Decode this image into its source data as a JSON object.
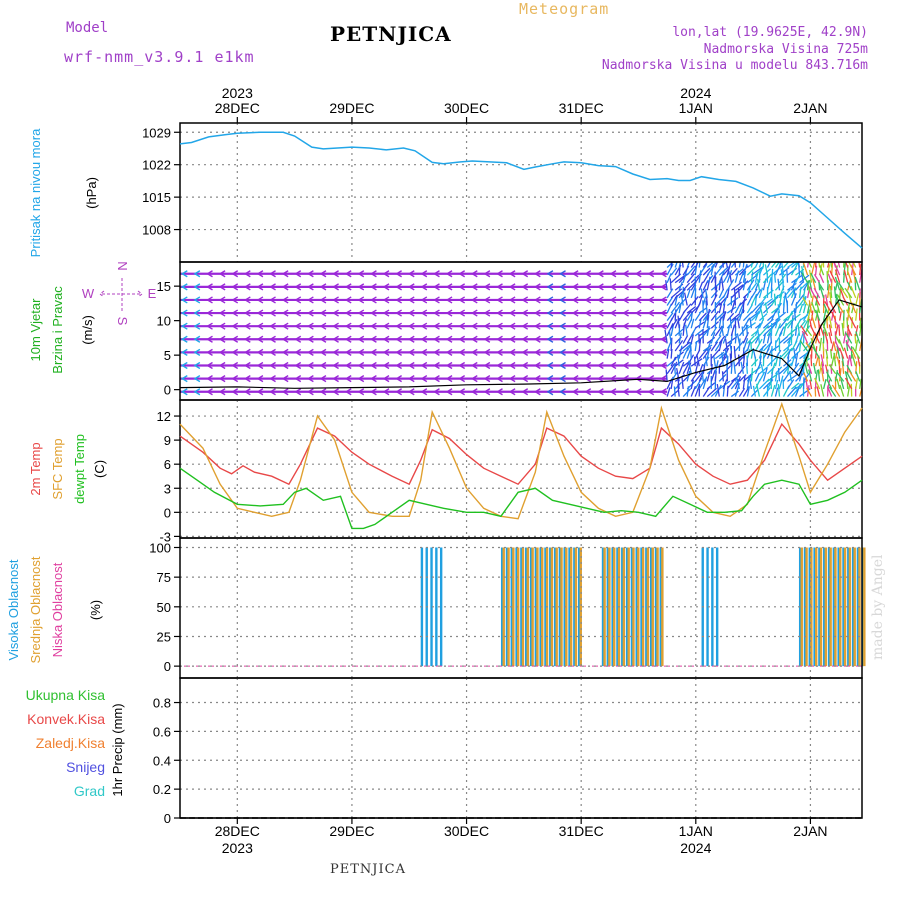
{
  "header": {
    "title": "PETNJICA",
    "model_label": "Model",
    "model_name": "wrf-nmm_v3.9.1 e1km",
    "meteogram_label": "Meteogram",
    "location_lines": [
      "lon,lat (19.9625E, 42.9N)",
      "Nadmorska Visina 725m",
      "Nadmorska Visina u modelu 843.716m"
    ],
    "footer": "PETNJICA",
    "watermark": "made by Angel"
  },
  "axis_dates": {
    "top_years": [
      {
        "x": 0,
        "label": "2023"
      },
      {
        "x": 4,
        "label": "2024"
      }
    ],
    "bottom_years": [
      {
        "x": 0,
        "label": "2023"
      },
      {
        "x": 4,
        "label": "2024"
      }
    ],
    "days": [
      "28DEC",
      "29DEC",
      "30DEC",
      "31DEC",
      "1JAN",
      "2JAN"
    ],
    "xlim": [
      -0.5,
      5.45
    ]
  },
  "panels": {
    "pressure": {
      "label": "Pritisak na nivou mora",
      "unit": "(hPa)",
      "ylim": [
        1001,
        1031
      ],
      "ticks": [
        1008,
        1015,
        1022,
        1029
      ]
    },
    "wind": {
      "label1": "10m Vjetar",
      "label2": "Brzina i Pravac",
      "unit": "(m/s)",
      "compass": {
        "n": "N",
        "s": "S",
        "e": "E",
        "w": "W"
      },
      "ylim": [
        -1.5,
        18.5
      ],
      "ticks": [
        0,
        5,
        10,
        15
      ]
    },
    "temperature": {
      "label1": "2m Temp",
      "label2": "SFC Temp",
      "label3": "dewpt Temp",
      "unit": "(C)",
      "ylim": [
        -3.2,
        14
      ],
      "ticks": [
        -3,
        0,
        3,
        6,
        9,
        12
      ]
    },
    "clouds": {
      "label1": "Visoka Oblacnost",
      "label2": "Srednja Oblacnost",
      "label3": "Niska Oblacnost",
      "unit": "(%)",
      "ylim": [
        -10,
        108
      ],
      "ticks": [
        0,
        25,
        50,
        75,
        100
      ]
    },
    "precip": {
      "legend": [
        "Ukupna Kisa",
        "Konvek.Kisa",
        "Zaledj.Kisa",
        "Snijeg",
        "Grad"
      ],
      "unit": "1hr Precip (mm)",
      "ylim": [
        0,
        0.97
      ],
      "ticks": [
        0,
        0.2,
        0.4,
        0.6,
        0.8
      ]
    }
  },
  "colors": {
    "pressure": "#22a6e8",
    "temp2m": "#e84848",
    "sfc": "#e0a030",
    "dewpt": "#20c020",
    "high_cloud": "#20a0e0",
    "mid_cloud": "#e0a030",
    "low_cloud": "#e040a0",
    "wind_label": "#20b020",
    "compass": "#b040c0",
    "ukupna": "#30c030",
    "konvek": "#e84848",
    "zaledj": "#f08030",
    "snijeg": "#5050e0",
    "grad": "#30c8c8"
  },
  "chart_data": [
    {
      "type": "line",
      "name": "Sea level pressure",
      "ylabel": "Pritisak na nivou mora (hPa)",
      "ylim": [
        1001,
        1031
      ],
      "x": [
        -0.5,
        -0.4,
        -0.25,
        -0.1,
        0.0,
        0.2,
        0.4,
        0.5,
        0.65,
        0.75,
        1.0,
        1.15,
        1.3,
        1.45,
        1.55,
        1.7,
        1.8,
        1.95,
        2.05,
        2.2,
        2.35,
        2.5,
        2.6,
        2.75,
        2.85,
        3.0,
        3.15,
        3.3,
        3.45,
        3.6,
        3.75,
        3.85,
        3.95,
        4.05,
        4.2,
        4.35,
        4.5,
        4.65,
        4.75,
        4.9,
        5.0,
        5.15,
        5.3,
        5.45
      ],
      "y": [
        1026.5,
        1026.8,
        1028.0,
        1028.5,
        1028.8,
        1029.0,
        1029.0,
        1028.2,
        1025.8,
        1025.4,
        1025.8,
        1025.6,
        1025.2,
        1025.6,
        1025.0,
        1022.5,
        1022.2,
        1022.6,
        1022.8,
        1022.6,
        1022.4,
        1021.0,
        1021.5,
        1022.2,
        1022.6,
        1022.4,
        1021.8,
        1021.6,
        1020.0,
        1018.8,
        1019.0,
        1018.6,
        1018.6,
        1019.4,
        1018.8,
        1018.4,
        1017.0,
        1015.2,
        1015.7,
        1015.3,
        1013.8,
        1010.5,
        1007.2,
        1004.0
      ]
    },
    {
      "type": "line",
      "name": "10m wind speed",
      "ylabel": "10m Vjetar Brzina i Pravac (m/s)",
      "ylim": [
        -1.5,
        18.5
      ],
      "x": [
        -0.5,
        0.0,
        0.5,
        1.0,
        1.5,
        2.0,
        2.5,
        3.0,
        3.5,
        3.75,
        4.0,
        4.25,
        4.5,
        4.75,
        4.9,
        5.0,
        5.1,
        5.25,
        5.45
      ],
      "y": [
        0.3,
        0.4,
        0.2,
        0.3,
        0.4,
        0.7,
        0.8,
        1.0,
        1.5,
        1.2,
        2.5,
        3.5,
        5.8,
        4.5,
        2.0,
        6.0,
        9.5,
        13.0,
        12.0
      ]
    },
    {
      "type": "line",
      "name": "2m Temp",
      "ylabel": "(C)",
      "ylim": [
        -3.2,
        14
      ],
      "x": [
        -0.5,
        -0.3,
        -0.15,
        -0.05,
        0.05,
        0.15,
        0.3,
        0.45,
        0.55,
        0.7,
        0.85,
        1.0,
        1.15,
        1.35,
        1.5,
        1.6,
        1.7,
        1.85,
        2.0,
        2.15,
        2.3,
        2.45,
        2.6,
        2.7,
        2.85,
        3.0,
        3.15,
        3.3,
        3.45,
        3.6,
        3.7,
        3.85,
        4.0,
        4.15,
        4.3,
        4.45,
        4.6,
        4.75,
        4.9,
        5.0,
        5.15,
        5.3,
        5.45
      ],
      "y": [
        9.5,
        7.5,
        5.5,
        4.8,
        5.8,
        5.0,
        4.5,
        3.5,
        6.0,
        10.5,
        9.5,
        7.5,
        6.0,
        4.5,
        3.5,
        6.5,
        10.3,
        9.2,
        7.2,
        5.5,
        4.5,
        3.5,
        6.0,
        10.5,
        9.5,
        7.0,
        5.5,
        4.5,
        4.2,
        5.5,
        10.5,
        8.5,
        6.0,
        4.5,
        3.5,
        4.0,
        6.5,
        11.0,
        8.5,
        6.5,
        4.0,
        5.5,
        7.0
      ]
    },
    {
      "type": "line",
      "name": "SFC Temp",
      "ylabel": "(C)",
      "ylim": [
        -3.2,
        14
      ],
      "x": [
        -0.5,
        -0.3,
        -0.15,
        0.0,
        0.15,
        0.3,
        0.45,
        0.55,
        0.7,
        0.85,
        1.0,
        1.15,
        1.35,
        1.5,
        1.6,
        1.7,
        1.85,
        2.0,
        2.15,
        2.3,
        2.45,
        2.6,
        2.7,
        2.85,
        3.0,
        3.15,
        3.3,
        3.45,
        3.6,
        3.7,
        3.85,
        4.0,
        4.15,
        4.3,
        4.45,
        4.6,
        4.75,
        4.9,
        5.0,
        5.15,
        5.3,
        5.45
      ],
      "y": [
        11.0,
        8.0,
        3.5,
        0.5,
        0.0,
        -0.5,
        0.0,
        4.0,
        12.0,
        9.0,
        2.5,
        0.0,
        -0.5,
        -0.5,
        4.0,
        12.5,
        8.0,
        3.0,
        0.5,
        -0.5,
        -0.8,
        5.0,
        12.5,
        7.0,
        2.5,
        0.5,
        -0.5,
        0.0,
        5.5,
        13.0,
        6.5,
        2.0,
        0.0,
        -0.5,
        1.0,
        7.5,
        13.5,
        7.0,
        2.5,
        6.0,
        10.0,
        13.0
      ]
    },
    {
      "type": "line",
      "name": "dewpt Temp",
      "ylabel": "(C)",
      "ylim": [
        -3.2,
        14
      ],
      "x": [
        -0.5,
        -0.35,
        -0.2,
        0.0,
        0.2,
        0.4,
        0.5,
        0.6,
        0.75,
        0.9,
        1.0,
        1.1,
        1.2,
        1.35,
        1.5,
        1.65,
        1.8,
        2.0,
        2.15,
        2.3,
        2.45,
        2.6,
        2.75,
        2.9,
        3.05,
        3.2,
        3.35,
        3.5,
        3.65,
        3.8,
        3.95,
        4.1,
        4.25,
        4.4,
        4.5,
        4.6,
        4.75,
        4.9,
        5.0,
        5.15,
        5.3,
        5.45
      ],
      "y": [
        5.5,
        4.0,
        2.5,
        1.0,
        0.8,
        1.0,
        2.5,
        3.0,
        1.5,
        2.0,
        -2.0,
        -2.0,
        -1.5,
        0.0,
        1.5,
        1.0,
        0.5,
        0.0,
        0.0,
        -0.5,
        2.5,
        3.0,
        1.5,
        1.0,
        0.5,
        0.0,
        0.2,
        0.0,
        -0.5,
        2.0,
        1.0,
        0.0,
        0.0,
        0.2,
        2.0,
        3.5,
        4.0,
        3.5,
        1.0,
        1.5,
        2.5,
        4.0
      ]
    },
    {
      "type": "bar",
      "name": "Visoka Oblacnost (%)",
      "ylim": [
        -10,
        108
      ],
      "segments": [
        {
          "x0": 1.6,
          "x1": 1.78,
          "value": 100
        },
        {
          "x0": 2.3,
          "x1": 3.0,
          "value": 100
        },
        {
          "x0": 3.18,
          "x1": 3.7,
          "value": 100
        },
        {
          "x0": 4.05,
          "x1": 4.2,
          "value": 100
        },
        {
          "x0": 4.9,
          "x1": 5.45,
          "value": 100
        }
      ]
    },
    {
      "type": "bar",
      "name": "Srednja Oblacnost (%)",
      "ylim": [
        -10,
        108
      ],
      "segments": [
        {
          "x0": 2.3,
          "x1": 3.0,
          "value": 100
        },
        {
          "x0": 3.18,
          "x1": 3.7,
          "value": 100
        },
        {
          "x0": 4.9,
          "x1": 5.45,
          "value": 100
        }
      ]
    },
    {
      "type": "line",
      "name": "1hr Precip (mm)",
      "ylabel": "1hr Precip (mm)",
      "ylim": [
        0,
        0.97
      ],
      "x": [
        -0.5,
        5.45
      ],
      "y": [
        0,
        0
      ]
    }
  ]
}
